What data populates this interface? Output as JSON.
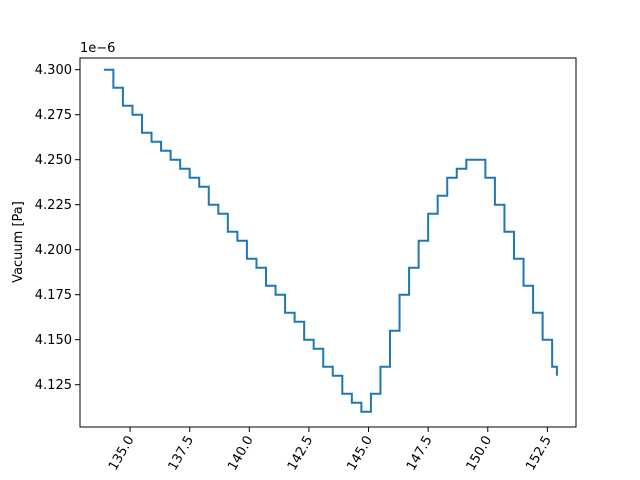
{
  "chart_data": {
    "type": "line",
    "title": "",
    "xlabel": "",
    "ylabel": "Vacuum [Pa]",
    "y_offset_label": "1e−6",
    "xlim": [
      132.9,
      153.7
    ],
    "ylim": [
      4.1015,
      4.3065
    ],
    "x_ticks": [
      135.0,
      137.5,
      140.0,
      142.5,
      145.0,
      147.5,
      150.0,
      152.5
    ],
    "x_tick_labels": [
      "135.0",
      "137.5",
      "140.0",
      "142.5",
      "145.0",
      "147.5",
      "150.0",
      "152.5"
    ],
    "y_ticks": [
      4.125,
      4.15,
      4.175,
      4.2,
      4.225,
      4.25,
      4.275,
      4.3
    ],
    "y_tick_labels": [
      "4.125",
      "4.150",
      "4.175",
      "4.200",
      "4.225",
      "4.250",
      "4.275",
      "4.300"
    ],
    "grid": false,
    "legend": "none",
    "series": [
      {
        "color": "#1f77b4",
        "x": [
          133.9,
          134.3,
          134.7,
          135.1,
          135.5,
          135.9,
          136.3,
          136.7,
          137.1,
          137.5,
          137.9,
          138.3,
          138.7,
          139.1,
          139.5,
          139.9,
          140.3,
          140.7,
          141.1,
          141.5,
          141.9,
          142.3,
          142.7,
          143.1,
          143.5,
          143.9,
          144.3,
          144.7,
          145.1,
          145.5,
          145.9,
          146.3,
          146.7,
          147.1,
          147.5,
          147.9,
          148.3,
          148.7,
          149.1,
          149.5,
          149.9,
          150.3,
          150.7,
          151.1,
          151.5,
          151.9,
          152.3,
          152.7,
          152.9
        ],
        "y": [
          4.3,
          4.29,
          4.28,
          4.275,
          4.265,
          4.26,
          4.255,
          4.25,
          4.245,
          4.24,
          4.235,
          4.225,
          4.22,
          4.21,
          4.205,
          4.195,
          4.19,
          4.18,
          4.175,
          4.165,
          4.16,
          4.15,
          4.145,
          4.135,
          4.13,
          4.12,
          4.115,
          4.11,
          4.12,
          4.135,
          4.155,
          4.175,
          4.19,
          4.205,
          4.22,
          4.23,
          4.24,
          4.245,
          4.25,
          4.25,
          4.24,
          4.225,
          4.21,
          4.195,
          4.18,
          4.165,
          4.15,
          4.135,
          4.13
        ]
      }
    ]
  }
}
